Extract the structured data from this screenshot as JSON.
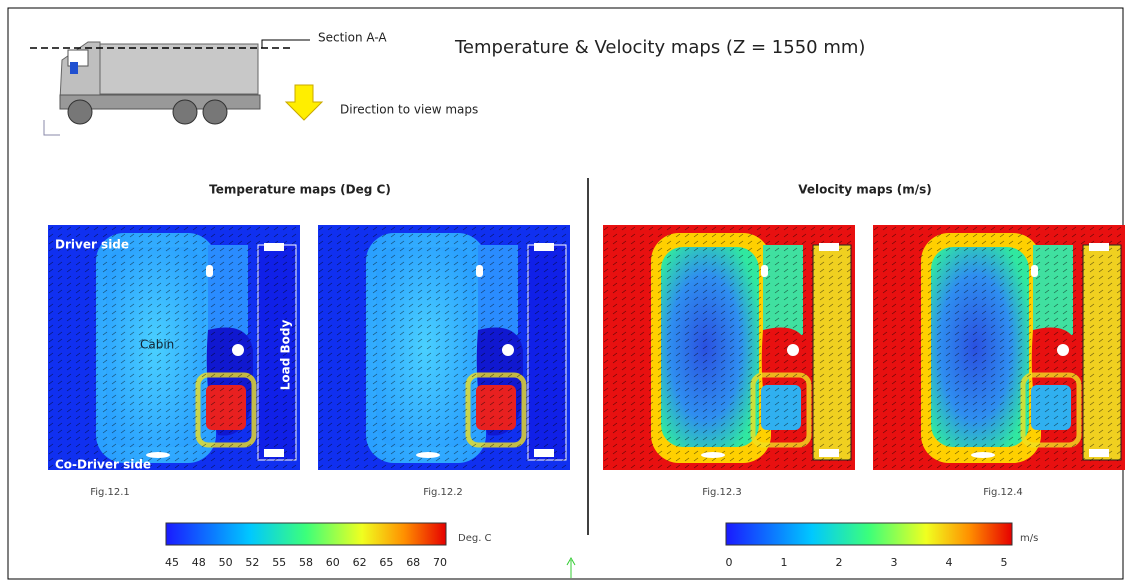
{
  "header": {
    "section_label": "Section A-A",
    "title": "Temperature & Velocity maps (Z = 1550 mm)",
    "direction_label": "Direction to view maps"
  },
  "temperature": {
    "heading": "Temperature maps (Deg C)",
    "labels": {
      "driver_side": "Driver side",
      "cabin": "Cabin",
      "load_body": "Load Body",
      "co_driver_side": "Co-Driver side"
    },
    "figures": [
      "Fig.12.1",
      "Fig.12.2"
    ],
    "colorbar": {
      "ticks": [
        45,
        48,
        50,
        52,
        55,
        58,
        60,
        62,
        65,
        68,
        70
      ],
      "unit": "Deg. C"
    }
  },
  "velocity": {
    "heading": "Velocity maps (m/s)",
    "figures": [
      "Fig.12.3",
      "Fig.12.4"
    ],
    "colorbar": {
      "ticks": [
        0,
        1,
        2,
        3,
        4,
        5
      ],
      "unit": "m/s"
    }
  }
}
